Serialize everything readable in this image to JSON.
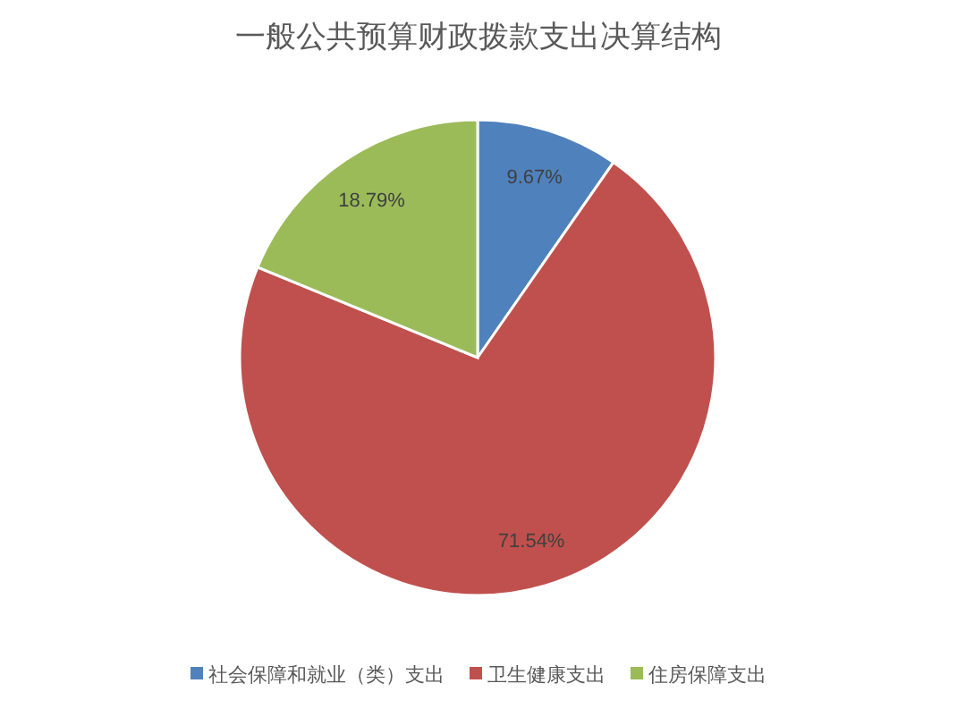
{
  "chart_data": {
    "type": "pie",
    "title": "一般公共预算财政拨款支出决算结构",
    "categories": [
      "社会保障和就业（类）支出",
      "卫生健康支出",
      "住房保障支出"
    ],
    "values": [
      9.67,
      71.54,
      18.79
    ],
    "colors": [
      "#4f81bd",
      "#c0504d",
      "#9bbb59"
    ],
    "value_labels": [
      "9.67%",
      "71.54%",
      "18.79%"
    ],
    "legend": "bottom"
  }
}
